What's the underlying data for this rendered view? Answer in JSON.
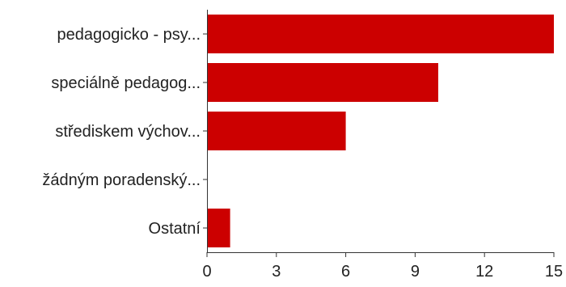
{
  "chart_data": {
    "type": "bar",
    "orientation": "horizontal",
    "categories": [
      "pedagogicko - psy...",
      "speciálně pedagog...",
      "střediskem výchov...",
      "žádným poradenský...",
      "Ostatní"
    ],
    "values": [
      15,
      10,
      6,
      0,
      1
    ],
    "x_ticks": [
      "0",
      "3",
      "6",
      "9",
      "12",
      "15"
    ],
    "xlim": [
      0,
      15
    ],
    "bar_color": "#cc0000",
    "grid": false,
    "legend": "none"
  }
}
